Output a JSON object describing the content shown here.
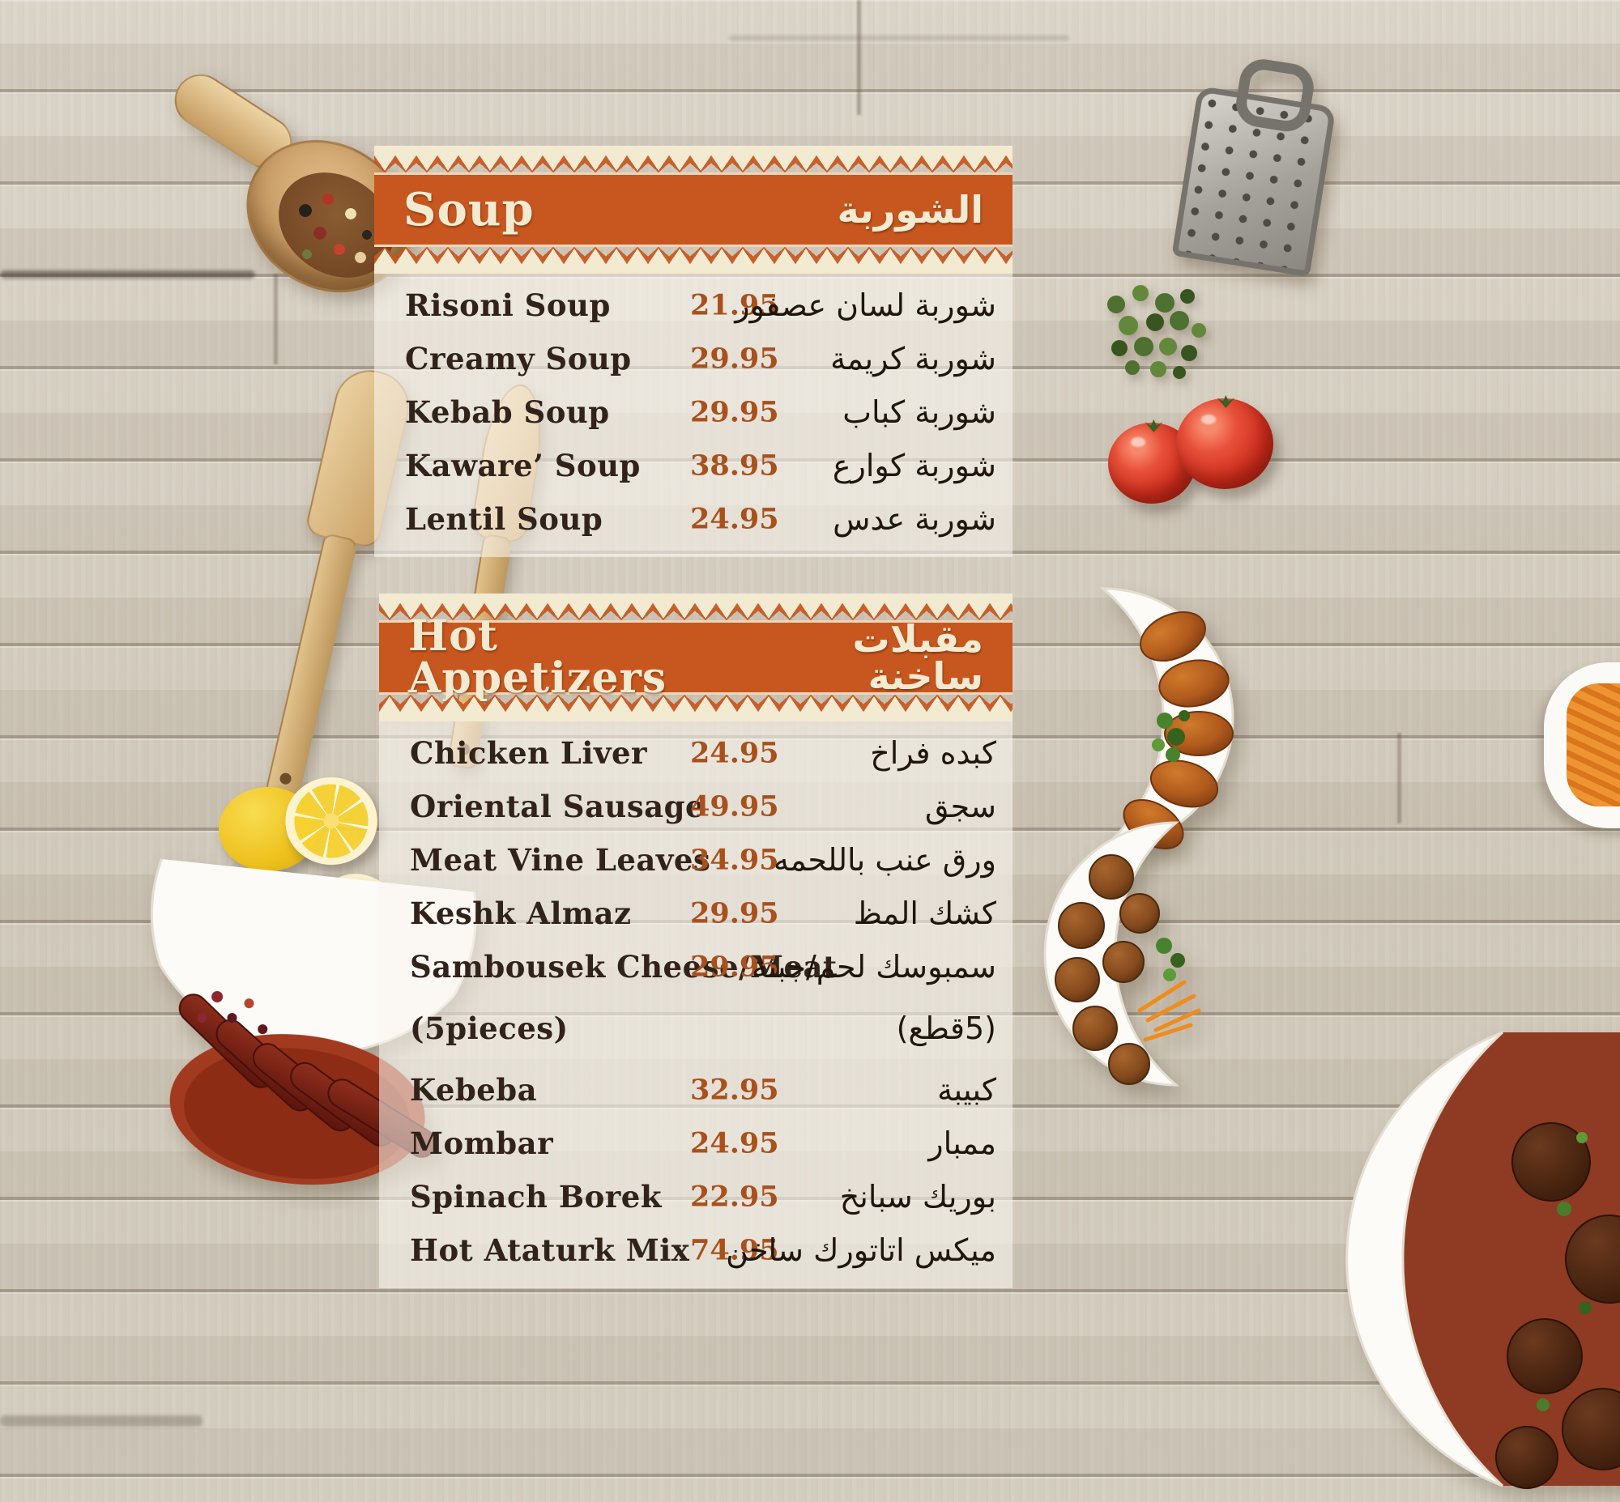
{
  "colors": {
    "band_orange": "#c7571f",
    "lace_cream": "#f3ead2",
    "price_brown": "#a8511d",
    "wood_light": "#d8d2c6"
  },
  "sections": [
    {
      "title_en": "Soup",
      "title_ar": "الشوربة",
      "items": [
        {
          "name_en": "Risoni Soup",
          "price": "21.95",
          "name_ar": "شوربة لسان عصفور"
        },
        {
          "name_en": "Creamy Soup",
          "price": "29.95",
          "name_ar": "شوربة كريمة"
        },
        {
          "name_en": "Kebab Soup",
          "price": "29.95",
          "name_ar": "شوربة كباب"
        },
        {
          "name_en": "Kaware’ Soup",
          "price": "38.95",
          "name_ar": "شوربة كوارع"
        },
        {
          "name_en": "Lentil Soup",
          "price": "24.95",
          "name_ar": "شوربة عدس"
        }
      ]
    },
    {
      "title_en": "Hot Appetizers",
      "title_ar": "مقبلات ساخنة",
      "items": [
        {
          "name_en": "Chicken Liver",
          "price": "24.95",
          "name_ar": "كبده فراخ"
        },
        {
          "name_en": "Oriental Sausage",
          "price": "49.95",
          "name_ar": "سجق"
        },
        {
          "name_en": "Meat Vine Leaves",
          "price": "34.95",
          "name_ar": "ورق عنب باللحمه"
        },
        {
          "name_en": "Keshk Almaz",
          "price": "29.95",
          "name_ar": "كشك المظ"
        },
        {
          "name_en": "Sambousek Cheese/Meat",
          "price": "29.95",
          "name_ar": "سمبوسك لحم/جبنة"
        },
        {
          "name_en": "(5pieces)",
          "price": "",
          "name_ar": "(5قطع)"
        },
        {
          "name_en": "Kebeba",
          "price": "32.95",
          "name_ar": "كبيبة"
        },
        {
          "name_en": "Mombar",
          "price": "24.95",
          "name_ar": "ممبار"
        },
        {
          "name_en": "Spinach Borek",
          "price": "22.95",
          "name_ar": "بوريك سبانخ"
        },
        {
          "name_en": "Hot Ataturk Mix",
          "price": "74.95",
          "name_ar": "ميكس اتاتورك ساخن"
        }
      ]
    }
  ],
  "decor": {
    "items": [
      "wooden-scoop-with-peppercorns",
      "metal-grater",
      "fresh-herb-sprig",
      "tomatoes",
      "wooden-spatulas",
      "lemon-and-slices",
      "sausage-appetizer-plate",
      "kibbeh-plate",
      "meatball-plate",
      "stew-bowl",
      "carrot-side-plate"
    ]
  }
}
